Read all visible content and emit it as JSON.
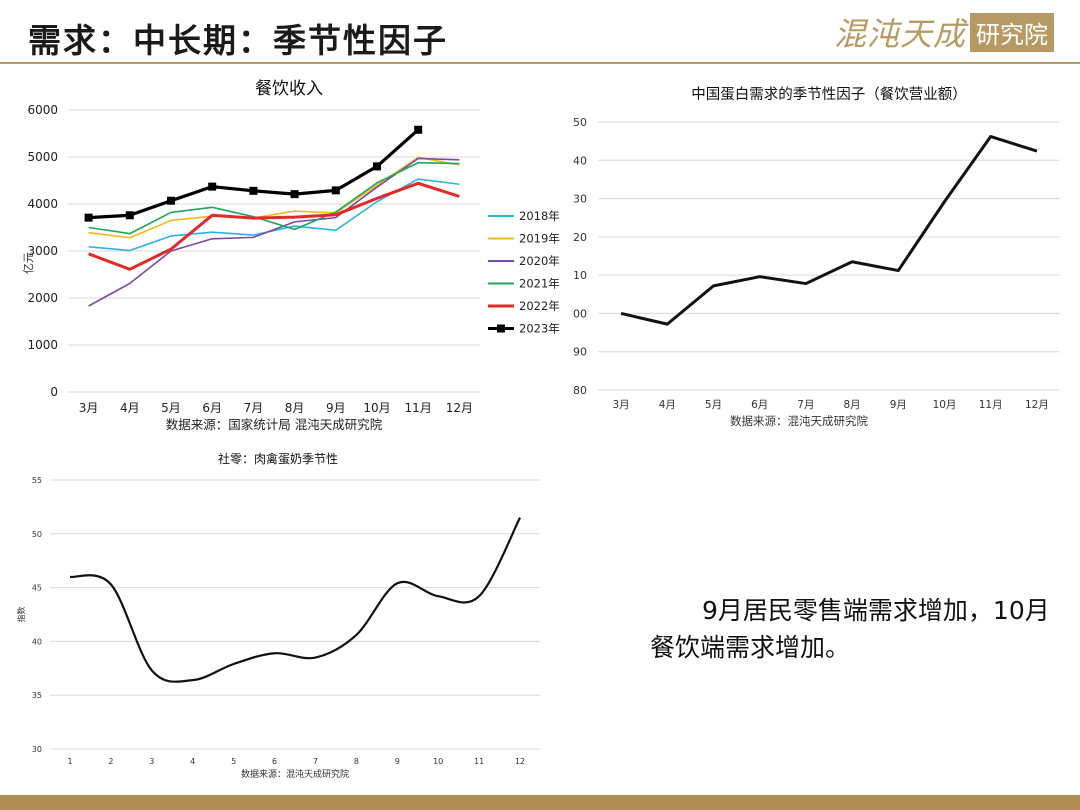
{
  "header": {
    "title": "需求：中长期：季节性因子",
    "logo_text": "混沌天成",
    "logo_seal": "研究院"
  },
  "note": "9月居民零售端需求增加，10月餐饮端需求增加。",
  "colors": {
    "accent": "#b79a63",
    "footer": "#b08e52"
  },
  "chart_data": [
    {
      "type": "line",
      "title": "餐饮收入",
      "ylabel": "亿元",
      "source": "数据来源：国家统计局 混沌天成研究院",
      "categories": [
        "3月",
        "4月",
        "5月",
        "6月",
        "7月",
        "8月",
        "9月",
        "10月",
        "11月",
        "12月"
      ],
      "ylim": [
        0,
        6000
      ],
      "yticks": [
        0,
        1000,
        2000,
        3000,
        4000,
        5000,
        6000
      ],
      "grid": true,
      "legend": "right",
      "series": [
        {
          "name": "2018年",
          "color": "#2bb4e0",
          "values": [
            3090,
            3010,
            3320,
            3400,
            3340,
            3530,
            3440,
            4050,
            4530,
            4420
          ]
        },
        {
          "name": "2019年",
          "color": "#f2b81c",
          "values": [
            3390,
            3280,
            3650,
            3740,
            3700,
            3850,
            3810,
            4400,
            4990,
            4830
          ]
        },
        {
          "name": "2020年",
          "color": "#7a4aa4",
          "values": [
            1830,
            2310,
            3000,
            3260,
            3290,
            3620,
            3710,
            4360,
            4970,
            4940
          ]
        },
        {
          "name": "2021年",
          "color": "#1ea65c",
          "values": [
            3500,
            3370,
            3820,
            3930,
            3730,
            3460,
            3830,
            4450,
            4880,
            4860
          ]
        },
        {
          "name": "2022年",
          "color": "#e32a2a",
          "values": [
            2940,
            2610,
            3040,
            3760,
            3700,
            3720,
            3770,
            4120,
            4440,
            4160
          ]
        },
        {
          "name": "2023年",
          "color": "#000000",
          "marker": "square",
          "values": [
            3710,
            3760,
            4070,
            4370,
            4280,
            4210,
            4290,
            4800,
            5580,
            null
          ]
        }
      ]
    },
    {
      "type": "line",
      "title": "中国蛋白需求的季节性因子（餐饮营业额）",
      "source": "数据来源：混沌天成研究院",
      "categories": [
        "3月",
        "4月",
        "5月",
        "6月",
        "7月",
        "8月",
        "9月",
        "10月",
        "11月",
        "12月"
      ],
      "ytick_labels": [
        "50",
        "40",
        "30",
        "20",
        "10",
        "00",
        "90",
        "80"
      ],
      "ylim": [
        -20,
        50
      ],
      "grid": true,
      "series": [
        {
          "color": "#111111",
          "values": [
            0,
            -2.8,
            7.2,
            9.6,
            7.8,
            13.5,
            11.2,
            29.2,
            46.2,
            42.4
          ]
        }
      ]
    },
    {
      "type": "line",
      "title": "社零：肉禽蛋奶季节性",
      "ylabel": "指数",
      "source": "数据来源：混沌天成研究院",
      "categories": [
        "1",
        "2",
        "3",
        "4",
        "5",
        "6",
        "7",
        "8",
        "9",
        "10",
        "11",
        "12"
      ],
      "ylim": [
        30,
        55
      ],
      "yticks": [
        30,
        35,
        40,
        45,
        50,
        55
      ],
      "grid": true,
      "series": [
        {
          "color": "#111111",
          "smooth": true,
          "values": [
            46.0,
            45.3,
            37.3,
            36.4,
            37.9,
            38.9,
            38.5,
            40.6,
            45.4,
            44.2,
            44.2,
            51.5
          ]
        }
      ]
    }
  ]
}
